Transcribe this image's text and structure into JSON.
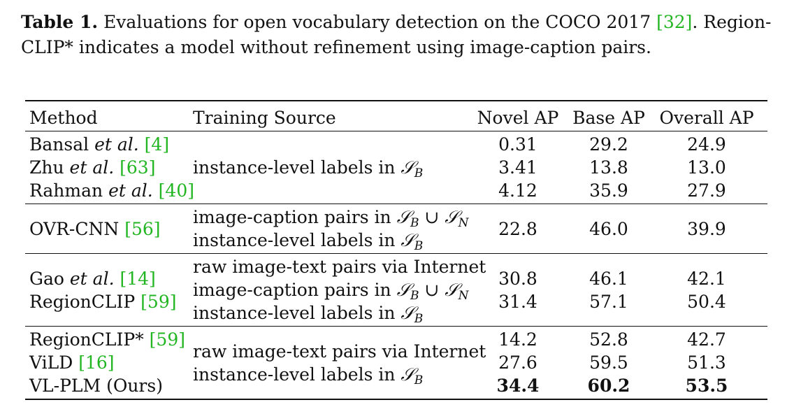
{
  "caption": {
    "label": "Table 1.",
    "text_before_ref": "Evaluations for open vocabulary detection on the COCO 2017 ",
    "ref": "[32]",
    "text_after_ref": ". Region-",
    "line2": "CLIP* indicates a model without refinement using image-caption pairs."
  },
  "table": {
    "headers": [
      "Method",
      "Training Source",
      "Novel AP",
      "Base AP",
      "Overall AP"
    ],
    "groups": [
      {
        "rows": [
          {
            "method_pre": "Bansal ",
            "method_it": "et al.",
            "method_post": " ",
            "ref": "[4]",
            "novel": "0.31",
            "base": "29.2",
            "overall": "24.9"
          },
          {
            "method_pre": "Zhu ",
            "method_it": "et al.",
            "method_post": " ",
            "ref": "[63]",
            "novel": "3.41",
            "base": "13.8",
            "overall": "13.0"
          },
          {
            "method_pre": "Rahman ",
            "method_it": "et al.",
            "method_post": " ",
            "ref": "[40]",
            "novel": "4.12",
            "base": "35.9",
            "overall": "27.9"
          }
        ],
        "sources": [
          "instance-level labels in S_B"
        ]
      },
      {
        "rows": [
          {
            "method_pre": "OVR-CNN ",
            "method_it": "",
            "method_post": "",
            "ref": "[56]",
            "novel": "22.8",
            "base": "46.0",
            "overall": "39.9"
          }
        ],
        "sources": [
          "image-caption pairs in S_B ∪ S_N",
          "instance-level labels in S_B"
        ]
      },
      {
        "rows": [
          {
            "method_pre": "Gao ",
            "method_it": "et al.",
            "method_post": " ",
            "ref": "[14]",
            "novel": "30.8",
            "base": "46.1",
            "overall": "42.1"
          },
          {
            "method_pre": "RegionCLIP ",
            "method_it": "",
            "method_post": "",
            "ref": "[59]",
            "novel": "31.4",
            "base": "57.1",
            "overall": "50.4"
          }
        ],
        "sources": [
          "raw image-text pairs via Internet",
          "image-caption pairs in S_B ∪ S_N",
          "instance-level labels in S_B"
        ]
      },
      {
        "rows": [
          {
            "method_pre": "RegionCLIP* ",
            "method_it": "",
            "method_post": "",
            "ref": "[59]",
            "novel": "14.2",
            "base": "52.8",
            "overall": "42.7"
          },
          {
            "method_pre": "ViLD ",
            "method_it": "",
            "method_post": "",
            "ref": "[16]",
            "novel": "27.6",
            "base": "59.5",
            "overall": "51.3"
          },
          {
            "method_pre": "VL-PLM (Ours)",
            "method_it": "",
            "method_post": "",
            "ref": "",
            "novel": "34.4",
            "base": "60.2",
            "overall": "53.5",
            "bold": true
          }
        ],
        "sources": [
          "raw image-text pairs via Internet",
          "instance-level labels in S_B"
        ]
      }
    ]
  },
  "colors": {
    "ref_link": "#22b522",
    "text": "#111111"
  }
}
